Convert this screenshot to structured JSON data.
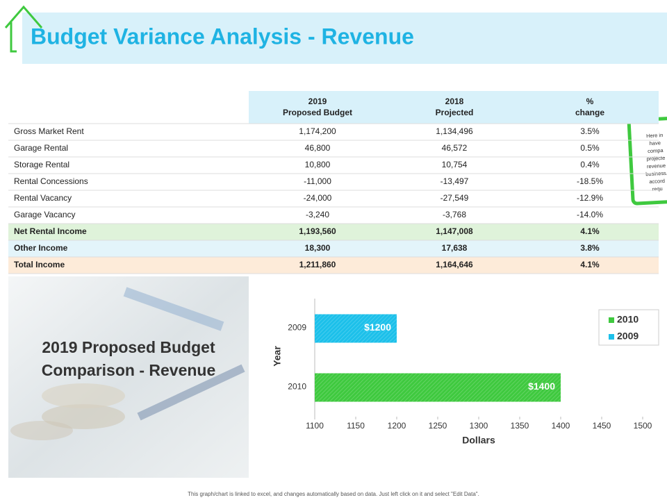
{
  "header": {
    "title": "Budget Variance Analysis - Revenue"
  },
  "table": {
    "columns": [
      [
        "2019",
        "Proposed Budget"
      ],
      [
        "2018",
        "Projected"
      ],
      [
        "%",
        "change"
      ]
    ],
    "rows": [
      [
        "Gross Market Rent",
        "1,174,200",
        "1,134,496",
        "3.5%"
      ],
      [
        "Garage Rental",
        "46,800",
        "46,572",
        "0.5%"
      ],
      [
        "Storage Rental",
        "10,800",
        "10,754",
        "0.4%"
      ],
      [
        "Rental Concessions",
        "-11,000",
        "-13,497",
        "-18.5%"
      ],
      [
        "Rental Vacancy",
        "-24,000",
        "-27,549",
        "-12.9%"
      ],
      [
        "Garage Vacancy",
        "-3,240",
        "-3,768",
        "-14.0%"
      ],
      [
        "Net Rental Income",
        "1,193,560",
        "1,147,008",
        "4.1%"
      ],
      [
        "Other Income",
        "18,300",
        "17,638",
        "3.8%"
      ],
      [
        "Total Income",
        "1,211,860",
        "1,164,646",
        "4.1%"
      ]
    ]
  },
  "note": {
    "lines": [
      "Here in",
      "have",
      "compa",
      "projecte",
      "revenue",
      "business.",
      "accord",
      "requ"
    ]
  },
  "photo_caption": [
    "2019 Proposed Budget",
    "Comparison - Revenue"
  ],
  "chart_data": {
    "type": "hbar",
    "categories": [
      "2009",
      "2010"
    ],
    "series": [
      {
        "name": "2010",
        "color": "#3fc93f",
        "values": [
          null,
          1400
        ],
        "value_labels": [
          null,
          "$1400"
        ]
      },
      {
        "name": "2009",
        "color": "#1cc0ea",
        "values": [
          1200,
          null
        ],
        "value_labels": [
          "$1200",
          null
        ]
      }
    ],
    "xlim": [
      1100,
      1500
    ],
    "xticks": [
      1100,
      1150,
      1200,
      1250,
      1300,
      1350,
      1400,
      1450,
      1500
    ],
    "xlabel": "Dollars",
    "ylabel": "Year",
    "legend": "top-right"
  },
  "footer": "This graph/chart is linked to excel, and changes automatically based on data. Just left click on it and select \"Edit Data\"."
}
